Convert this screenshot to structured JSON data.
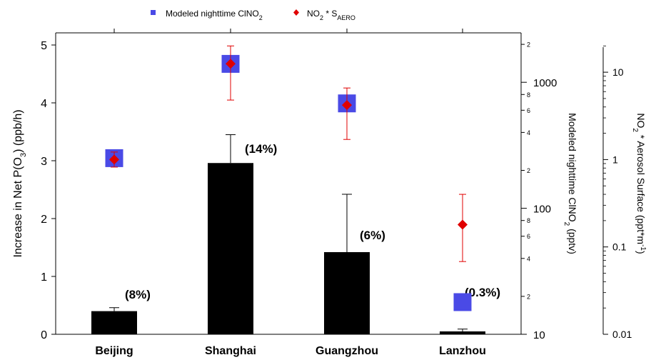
{
  "chart_data": {
    "type": "bar",
    "categories": [
      "Beijing",
      "Shanghai",
      "Guangzhou",
      "Lanzhou"
    ],
    "left_axis": {
      "label_parts": [
        "Increase in Net P(O",
        "3",
        ") (ppb/h)"
      ],
      "ylim": [
        0,
        5
      ],
      "ticks": [
        "0",
        "1",
        "2",
        "3",
        "4",
        "5"
      ]
    },
    "right_axis_1": {
      "label_parts": [
        "Modeled nighttime ClNO",
        "2",
        " (pptv)"
      ],
      "scale": "log",
      "ylim": [
        10,
        2200
      ],
      "major_ticks": [
        "10",
        "100",
        "1000"
      ],
      "minor_ticks": [
        "2",
        "4",
        "6",
        "8",
        "2",
        "4",
        "6",
        "8",
        "2"
      ],
      "minor_tick_values": [
        20,
        40,
        60,
        80,
        200,
        400,
        600,
        800,
        2000
      ]
    },
    "right_axis_2": {
      "label_parts": [
        "NO",
        "2",
        " * Aerosol Surface (ppt*m",
        "-1",
        ")"
      ],
      "scale": "log",
      "ylim": [
        0.01,
        20
      ],
      "major_ticks": [
        "0.01",
        "0.1",
        "1",
        "10"
      ]
    },
    "bars": {
      "values": [
        0.4,
        2.96,
        1.42,
        0.05
      ],
      "error_upper": [
        0.46,
        3.45,
        2.42,
        0.09
      ],
      "labels": [
        "(8%)",
        "(14%)",
        "(6%)",
        "(0.3%)"
      ],
      "color": "#000000"
    },
    "series": [
      {
        "name": "Modeled nighttime ClNO2",
        "legend_parts": [
          "Modeled nighttime ClNO",
          "2",
          ""
        ],
        "axis": "right_axis_1",
        "marker": "square",
        "color": "#4a4ae6",
        "values": [
          250,
          1400,
          680,
          18
        ]
      },
      {
        "name": "NO2 * SAERO",
        "legend_parts": [
          "NO",
          "2",
          " * S",
          "AERO",
          ""
        ],
        "axis": "right_axis_2",
        "marker": "diamond",
        "color": "#e00000",
        "values": [
          1.0,
          12.5,
          4.2,
          0.18
        ],
        "error_low": [
          0.82,
          4.8,
          1.7,
          0.068
        ],
        "error_high": [
          1.22,
          20.0,
          6.6,
          0.4
        ]
      }
    ]
  }
}
